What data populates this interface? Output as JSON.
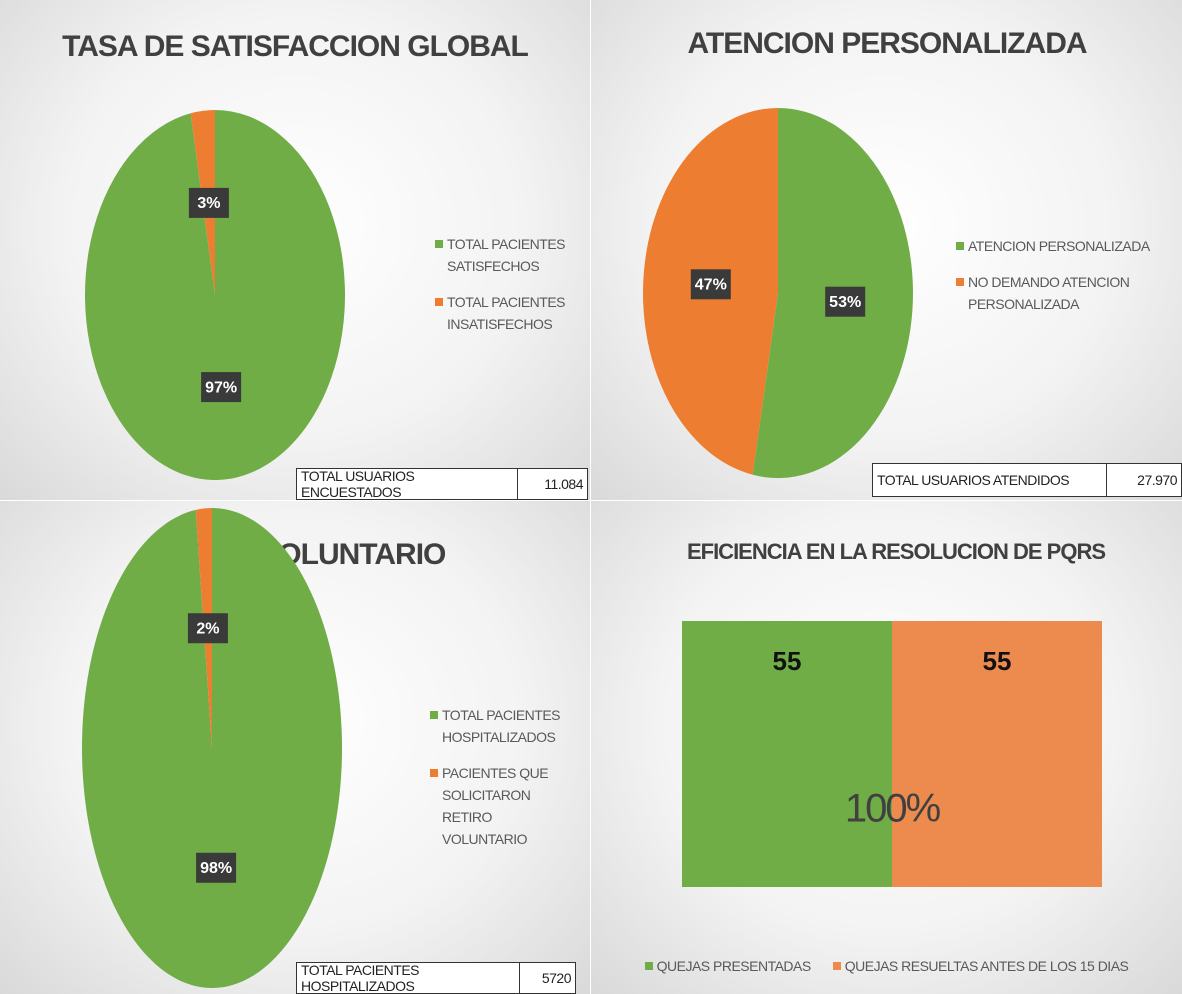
{
  "chart_data": [
    {
      "type": "pie",
      "title": "TASA DE SATISFACCION GLOBAL",
      "categories": [
        "TOTAL PACIENTES SATISFECHOS",
        "TOTAL PACIENTES INSATISFECHOS"
      ],
      "values": [
        97,
        3
      ],
      "value_labels": [
        "97%",
        "3%"
      ],
      "colors": [
        "#70ad47",
        "#ed7d31"
      ],
      "total_label": "TOTAL USUARIOS ENCUESTADOS",
      "total_value": "11.084"
    },
    {
      "type": "pie",
      "title": "ATENCION PERSONALIZADA",
      "categories": [
        "ATENCION PERSONALIZADA",
        "NO DEMANDO ATENCION PERSONALIZADA"
      ],
      "values": [
        53,
        47
      ],
      "value_labels": [
        "53%",
        "47%"
      ],
      "colors": [
        "#70ad47",
        "#ed7d31"
      ],
      "total_label": "TOTAL USUARIOS ATENDIDOS",
      "total_value": "27.970"
    },
    {
      "type": "pie",
      "title": "RETIRO VOLUNTARIO",
      "categories": [
        "TOTAL PACIENTES HOSPITALIZADOS",
        "PACIENTES QUE SOLICITARON RETIRO VOLUNTARIO"
      ],
      "values": [
        98,
        2
      ],
      "value_labels": [
        "98%",
        "2%"
      ],
      "colors": [
        "#70ad47",
        "#ed7d31"
      ],
      "total_label": "TOTAL PACIENTES HOSPITALIZADOS",
      "total_value": "5720"
    },
    {
      "type": "bar",
      "title": "EFICIENCIA EN LA RESOLUCION DE PQRS",
      "categories": [
        "QUEJAS PRESENTADAS",
        "QUEJAS RESUELTAS ANTES DE LOS 15 DIAS"
      ],
      "values": [
        55,
        55
      ],
      "colors": [
        "#70ad47",
        "#ed8b4f"
      ],
      "annotation": "100%"
    }
  ]
}
